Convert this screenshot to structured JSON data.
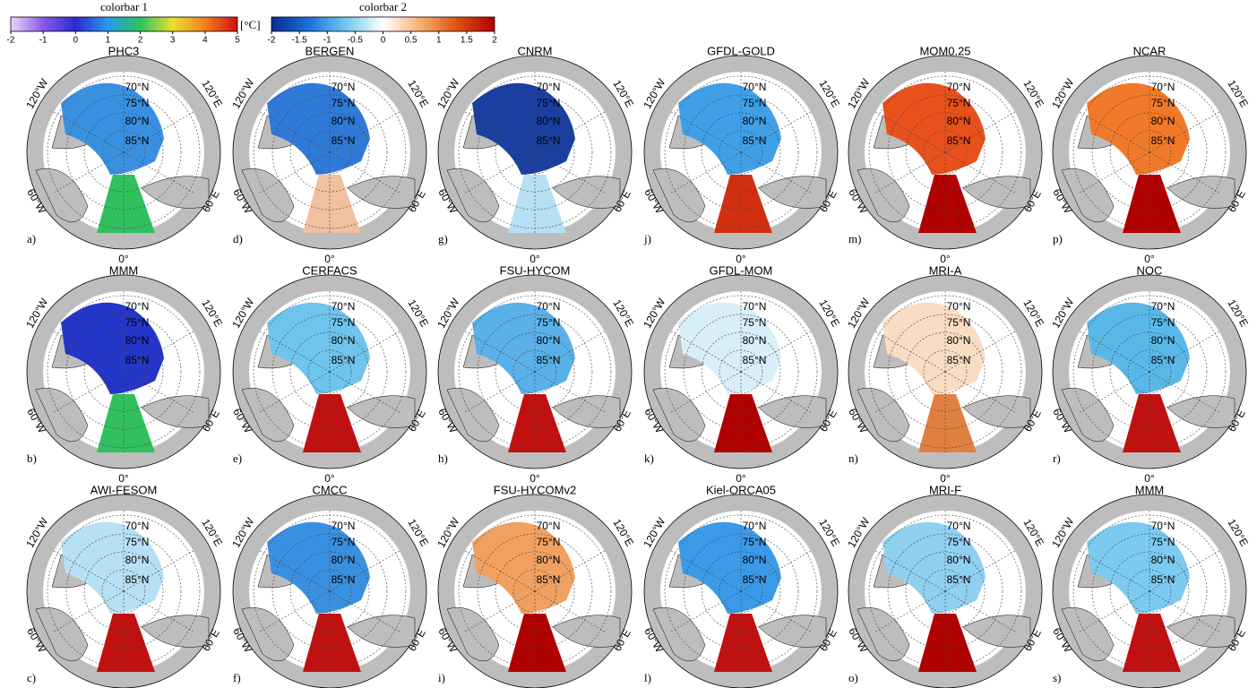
{
  "colorbars": [
    {
      "title": "colorbar 1",
      "lim": [
        -2,
        5
      ],
      "ticks": [
        -2,
        -1,
        0,
        1,
        2,
        3,
        4,
        5
      ],
      "colors": [
        "#e8d8f8",
        "#8a5ae8",
        "#2a2ad0",
        "#2a9ae8",
        "#30c060",
        "#e8e030",
        "#f08020",
        "#d01010"
      ]
    },
    {
      "title": "colorbar 2",
      "lim": [
        -2,
        2
      ],
      "ticks": [
        -2,
        -1.5,
        -1,
        -0.5,
        0,
        0.5,
        1,
        1.5,
        2
      ],
      "colors": [
        "#0a2a90",
        "#1a70d8",
        "#70c8f0",
        "#ffffff",
        "#f8b070",
        "#e05010",
        "#b00000"
      ]
    }
  ],
  "unit": "[°C]",
  "lat_labels": [
    "70°N",
    "75°N",
    "80°N",
    "85°N"
  ],
  "lon_labels": [
    "120°W",
    "120°E",
    "60°W",
    "60°E",
    "0°"
  ],
  "panels": [
    {
      "title": "PHC3",
      "letter": "a)",
      "color": "#3a90e0",
      "atlantic": "#30c060"
    },
    {
      "title": "MMM",
      "letter": "b)",
      "color": "#2436c8",
      "atlantic": "#30c060"
    },
    {
      "title": "AWI-FESOM",
      "letter": "c)",
      "color": "#b8e0f4",
      "atlantic": "#c01010"
    },
    {
      "title": "BERGEN",
      "letter": "d)",
      "color": "#2f7ad8",
      "atlantic": "#f0c0a0"
    },
    {
      "title": "CERFACS",
      "letter": "e)",
      "color": "#6ec4ec",
      "atlantic": "#c01010"
    },
    {
      "title": "CMCC",
      "letter": "f)",
      "color": "#3a90e0",
      "atlantic": "#c01010"
    },
    {
      "title": "CNRM",
      "letter": "g)",
      "color": "#1a3fa0",
      "atlantic": "#b8e0f4"
    },
    {
      "title": "FSU-HYCOM",
      "letter": "h)",
      "color": "#5ab0e8",
      "atlantic": "#c01010"
    },
    {
      "title": "FSU-HYCOMv2",
      "letter": "i)",
      "color": "#f0a060",
      "atlantic": "#b00000"
    },
    {
      "title": "GFDL-GOLD",
      "letter": "j)",
      "color": "#3fa0e8",
      "atlantic": "#d03010"
    },
    {
      "title": "GFDL-MOM",
      "letter": "k)",
      "color": "#d8eef8",
      "atlantic": "#b00000"
    },
    {
      "title": "Kiel-ORCA05",
      "letter": "l)",
      "color": "#3a9ae8",
      "atlantic": "#c01010"
    },
    {
      "title": "MOM0.25",
      "letter": "m)",
      "color": "#e8501c",
      "atlantic": "#b00000"
    },
    {
      "title": "MRI-A",
      "letter": "n)",
      "color": "#f8dcc4",
      "atlantic": "#e08040"
    },
    {
      "title": "MRI-F",
      "letter": "o)",
      "color": "#8fd0f0",
      "atlantic": "#b00000"
    },
    {
      "title": "NCAR",
      "letter": "p)",
      "color": "#f07a2a",
      "atlantic": "#b00000"
    },
    {
      "title": "NOC",
      "letter": "r)",
      "color": "#5ab8e8",
      "atlantic": "#c01010"
    },
    {
      "title": "MMM",
      "letter": "s)",
      "color": "#7ccaf0",
      "atlantic": "#c01010"
    }
  ]
}
